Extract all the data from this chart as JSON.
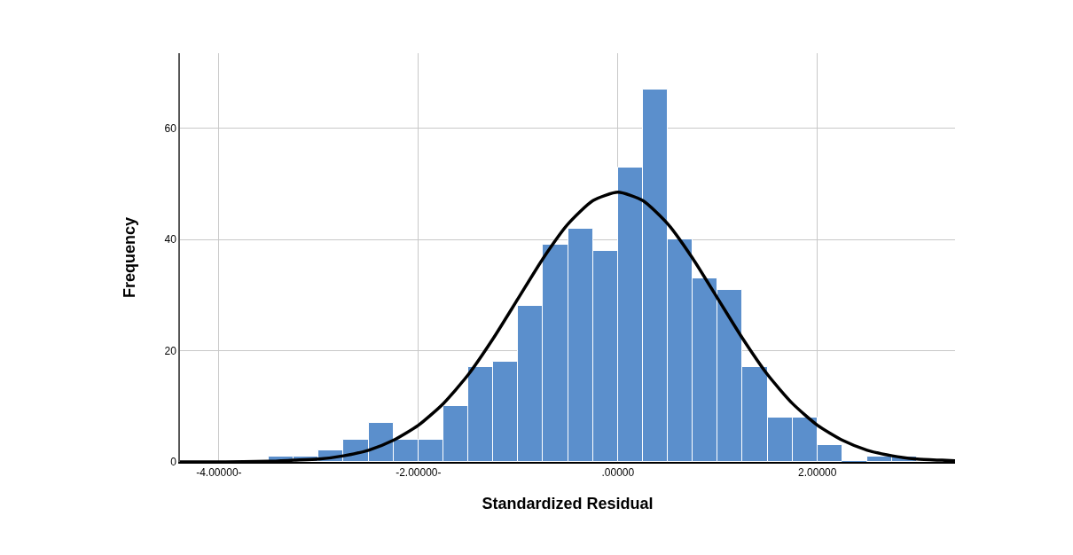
{
  "chart_data": {
    "type": "histogram",
    "xlabel": "Standardized Residual",
    "ylabel": "Frequency",
    "bins": [
      -3.5,
      -3.25,
      -3.0,
      -2.75,
      -2.5,
      -2.25,
      -2.0,
      -1.75,
      -1.5,
      -1.25,
      -1.0,
      -0.75,
      -0.5,
      -0.25,
      0,
      0.25,
      0.5,
      0.75,
      1.0,
      1.25,
      1.5,
      1.75,
      2.0,
      2.25,
      2.5,
      2.75,
      3.0
    ],
    "series": [
      {
        "color": "#5b8fcc",
        "values": [
          1,
          1,
          2,
          4,
          7,
          4,
          4,
          10,
          17,
          18,
          28,
          39,
          42,
          38,
          53,
          67,
          40,
          33,
          31,
          17,
          8,
          8,
          3,
          0,
          1,
          1
        ]
      },
      {
        "type": "line",
        "color": "#000000",
        "x": [
          -4.39,
          -4.0,
          -3.5,
          -3.25,
          -3.0,
          -2.75,
          -2.5,
          -2.25,
          -2.0,
          -1.75,
          -1.5,
          -1.25,
          -1.0,
          -0.75,
          -0.5,
          -0.25,
          0,
          0.25,
          0.5,
          0.75,
          1.0,
          1.25,
          1.5,
          1.75,
          2.0,
          2.25,
          2.5,
          2.75,
          3.0,
          3.25,
          3.38
        ],
        "values": [
          0,
          0,
          0.1,
          0.3,
          0.5,
          1.1,
          2.1,
          3.9,
          6.6,
          10.5,
          15.7,
          22.2,
          29.4,
          36.6,
          42.8,
          47.0,
          48.5,
          47.0,
          42.8,
          36.6,
          29.4,
          22.2,
          15.7,
          10.5,
          6.6,
          3.9,
          2.1,
          1.1,
          0.5,
          0.3,
          0.2
        ]
      }
    ],
    "xlim": [
      -4.39,
      3.38
    ],
    "xticks": [
      {
        "value": -4,
        "label": "-4.00000-"
      },
      {
        "value": -2,
        "label": "-2.00000-"
      },
      {
        "value": 0,
        "label": ".00000"
      },
      {
        "value": 2,
        "label": "2.00000"
      }
    ],
    "ylim": [
      0,
      73.5
    ],
    "yticks": [
      0,
      20,
      40,
      60
    ],
    "grid": true
  }
}
